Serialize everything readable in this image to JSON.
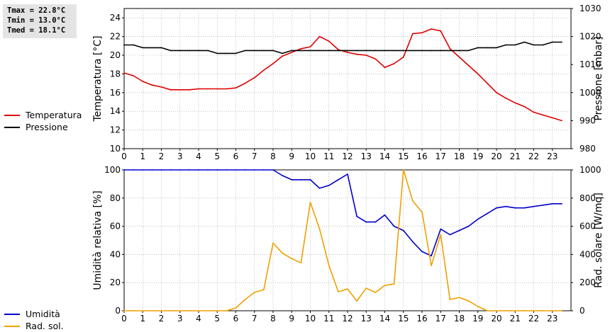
{
  "stats": {
    "tmax": "Tmax = 22.8°C",
    "tmin": "Tmin = 13.0°C",
    "tmed": "Tmed = 18.1°C"
  },
  "colors": {
    "temperatura": "#dd0000",
    "pressione": "#000000",
    "umidita": "#0000cc",
    "radiazione": "#f0a000",
    "grid": "#999999"
  },
  "chart_data": [
    {
      "type": "line",
      "x": [
        0,
        0.5,
        1,
        1.5,
        2,
        2.5,
        3,
        3.5,
        4,
        4.5,
        5,
        5.5,
        6,
        6.5,
        7,
        7.5,
        8,
        8.5,
        9,
        9.5,
        10,
        10.5,
        11,
        11.5,
        12,
        12.5,
        13,
        13.5,
        14,
        14.5,
        15,
        15.5,
        16,
        16.5,
        17,
        17.5,
        18,
        18.5,
        19,
        19.5,
        20,
        20.5,
        21,
        21.5,
        22,
        22.5,
        23,
        23.5
      ],
      "xlim": [
        0,
        24
      ],
      "xticks": [
        "0",
        "1",
        "2",
        "3",
        "4",
        "5",
        "6",
        "7",
        "8",
        "9",
        "10",
        "11",
        "12",
        "13",
        "14",
        "15",
        "16",
        "17",
        "18",
        "19",
        "20",
        "21",
        "22",
        "23"
      ],
      "ylabel": "Temperatura [°C]",
      "ylim": [
        10,
        25
      ],
      "yticks": [
        "10",
        "12",
        "14",
        "16",
        "18",
        "20",
        "22",
        "24"
      ],
      "y2label": "Pressione [mbar]",
      "y2lim": [
        980,
        1030
      ],
      "y2ticks": [
        "980",
        "990",
        "1000",
        "1010",
        "1020",
        "1030"
      ],
      "grid": true,
      "series": [
        {
          "name": "Temperatura",
          "axis": "left",
          "values": [
            18.1,
            17.8,
            17.2,
            16.8,
            16.6,
            16.3,
            16.3,
            16.3,
            16.4,
            16.4,
            16.4,
            16.4,
            16.5,
            17.0,
            17.6,
            18.4,
            19.1,
            19.9,
            20.3,
            20.7,
            20.9,
            22.0,
            21.5,
            20.6,
            20.3,
            20.1,
            20.0,
            19.6,
            18.7,
            19.1,
            19.8,
            22.3,
            22.4,
            22.8,
            22.6,
            20.7,
            19.8,
            18.9,
            18.0,
            17.0,
            16.0,
            15.4,
            14.9,
            14.5,
            13.9,
            13.6,
            13.3,
            13.0
          ]
        },
        {
          "name": "Pressione",
          "axis": "right",
          "values": [
            1017,
            1017,
            1016,
            1016,
            1016,
            1015,
            1015,
            1015,
            1015,
            1015,
            1014,
            1014,
            1014,
            1015,
            1015,
            1015,
            1015,
            1014,
            1015,
            1015,
            1015,
            1015,
            1015,
            1015,
            1015,
            1015,
            1015,
            1015,
            1015,
            1015,
            1015,
            1015,
            1015,
            1015,
            1015,
            1015,
            1015,
            1015,
            1016,
            1016,
            1016,
            1017,
            1017,
            1018,
            1017,
            1017,
            1018,
            1018
          ]
        }
      ]
    },
    {
      "type": "line",
      "x": [
        0,
        0.5,
        1,
        1.5,
        2,
        2.5,
        3,
        3.5,
        4,
        4.5,
        5,
        5.5,
        6,
        6.5,
        7,
        7.5,
        8,
        8.5,
        9,
        9.5,
        10,
        10.5,
        11,
        11.5,
        12,
        12.5,
        13,
        13.5,
        14,
        14.5,
        15,
        15.5,
        16,
        16.5,
        17,
        17.5,
        18,
        18.5,
        19,
        19.5,
        20,
        20.5,
        21,
        21.5,
        22,
        22.5,
        23,
        23.5
      ],
      "xlim": [
        0,
        24
      ],
      "xticks": [
        "0",
        "1",
        "2",
        "3",
        "4",
        "5",
        "6",
        "7",
        "8",
        "9",
        "10",
        "11",
        "12",
        "13",
        "14",
        "15",
        "16",
        "17",
        "18",
        "19",
        "20",
        "21",
        "22",
        "23"
      ],
      "ylabel": "Umidità relativa [%]",
      "ylim": [
        0,
        100
      ],
      "yticks": [
        "0",
        "20",
        "40",
        "60",
        "80",
        "100"
      ],
      "y2label": "Rad. solare [W/mq]",
      "y2lim": [
        0,
        1000
      ],
      "y2ticks": [
        "0",
        "200",
        "400",
        "600",
        "800",
        "1000"
      ],
      "grid": true,
      "series": [
        {
          "name": "Umidità",
          "axis": "left",
          "values": [
            100,
            100,
            100,
            100,
            100,
            100,
            100,
            100,
            100,
            100,
            100,
            100,
            100,
            100,
            100,
            100,
            100,
            96,
            93,
            93,
            93,
            87,
            89,
            93,
            97,
            67,
            63,
            63,
            68,
            60,
            57,
            49,
            42,
            39,
            58,
            54,
            57,
            60,
            65,
            69,
            73,
            74,
            73,
            73,
            74,
            75,
            76,
            76
          ]
        },
        {
          "name": "Rad. sol.",
          "axis": "right",
          "values": [
            0,
            0,
            0,
            0,
            0,
            0,
            0,
            0,
            0,
            0,
            0,
            0,
            20,
            80,
            130,
            150,
            480,
            410,
            370,
            340,
            770,
            580,
            320,
            135,
            155,
            70,
            160,
            130,
            180,
            190,
            1000,
            780,
            700,
            320,
            540,
            80,
            95,
            70,
            30,
            0,
            0,
            0,
            0,
            0,
            0,
            0,
            0,
            0
          ]
        }
      ]
    }
  ]
}
